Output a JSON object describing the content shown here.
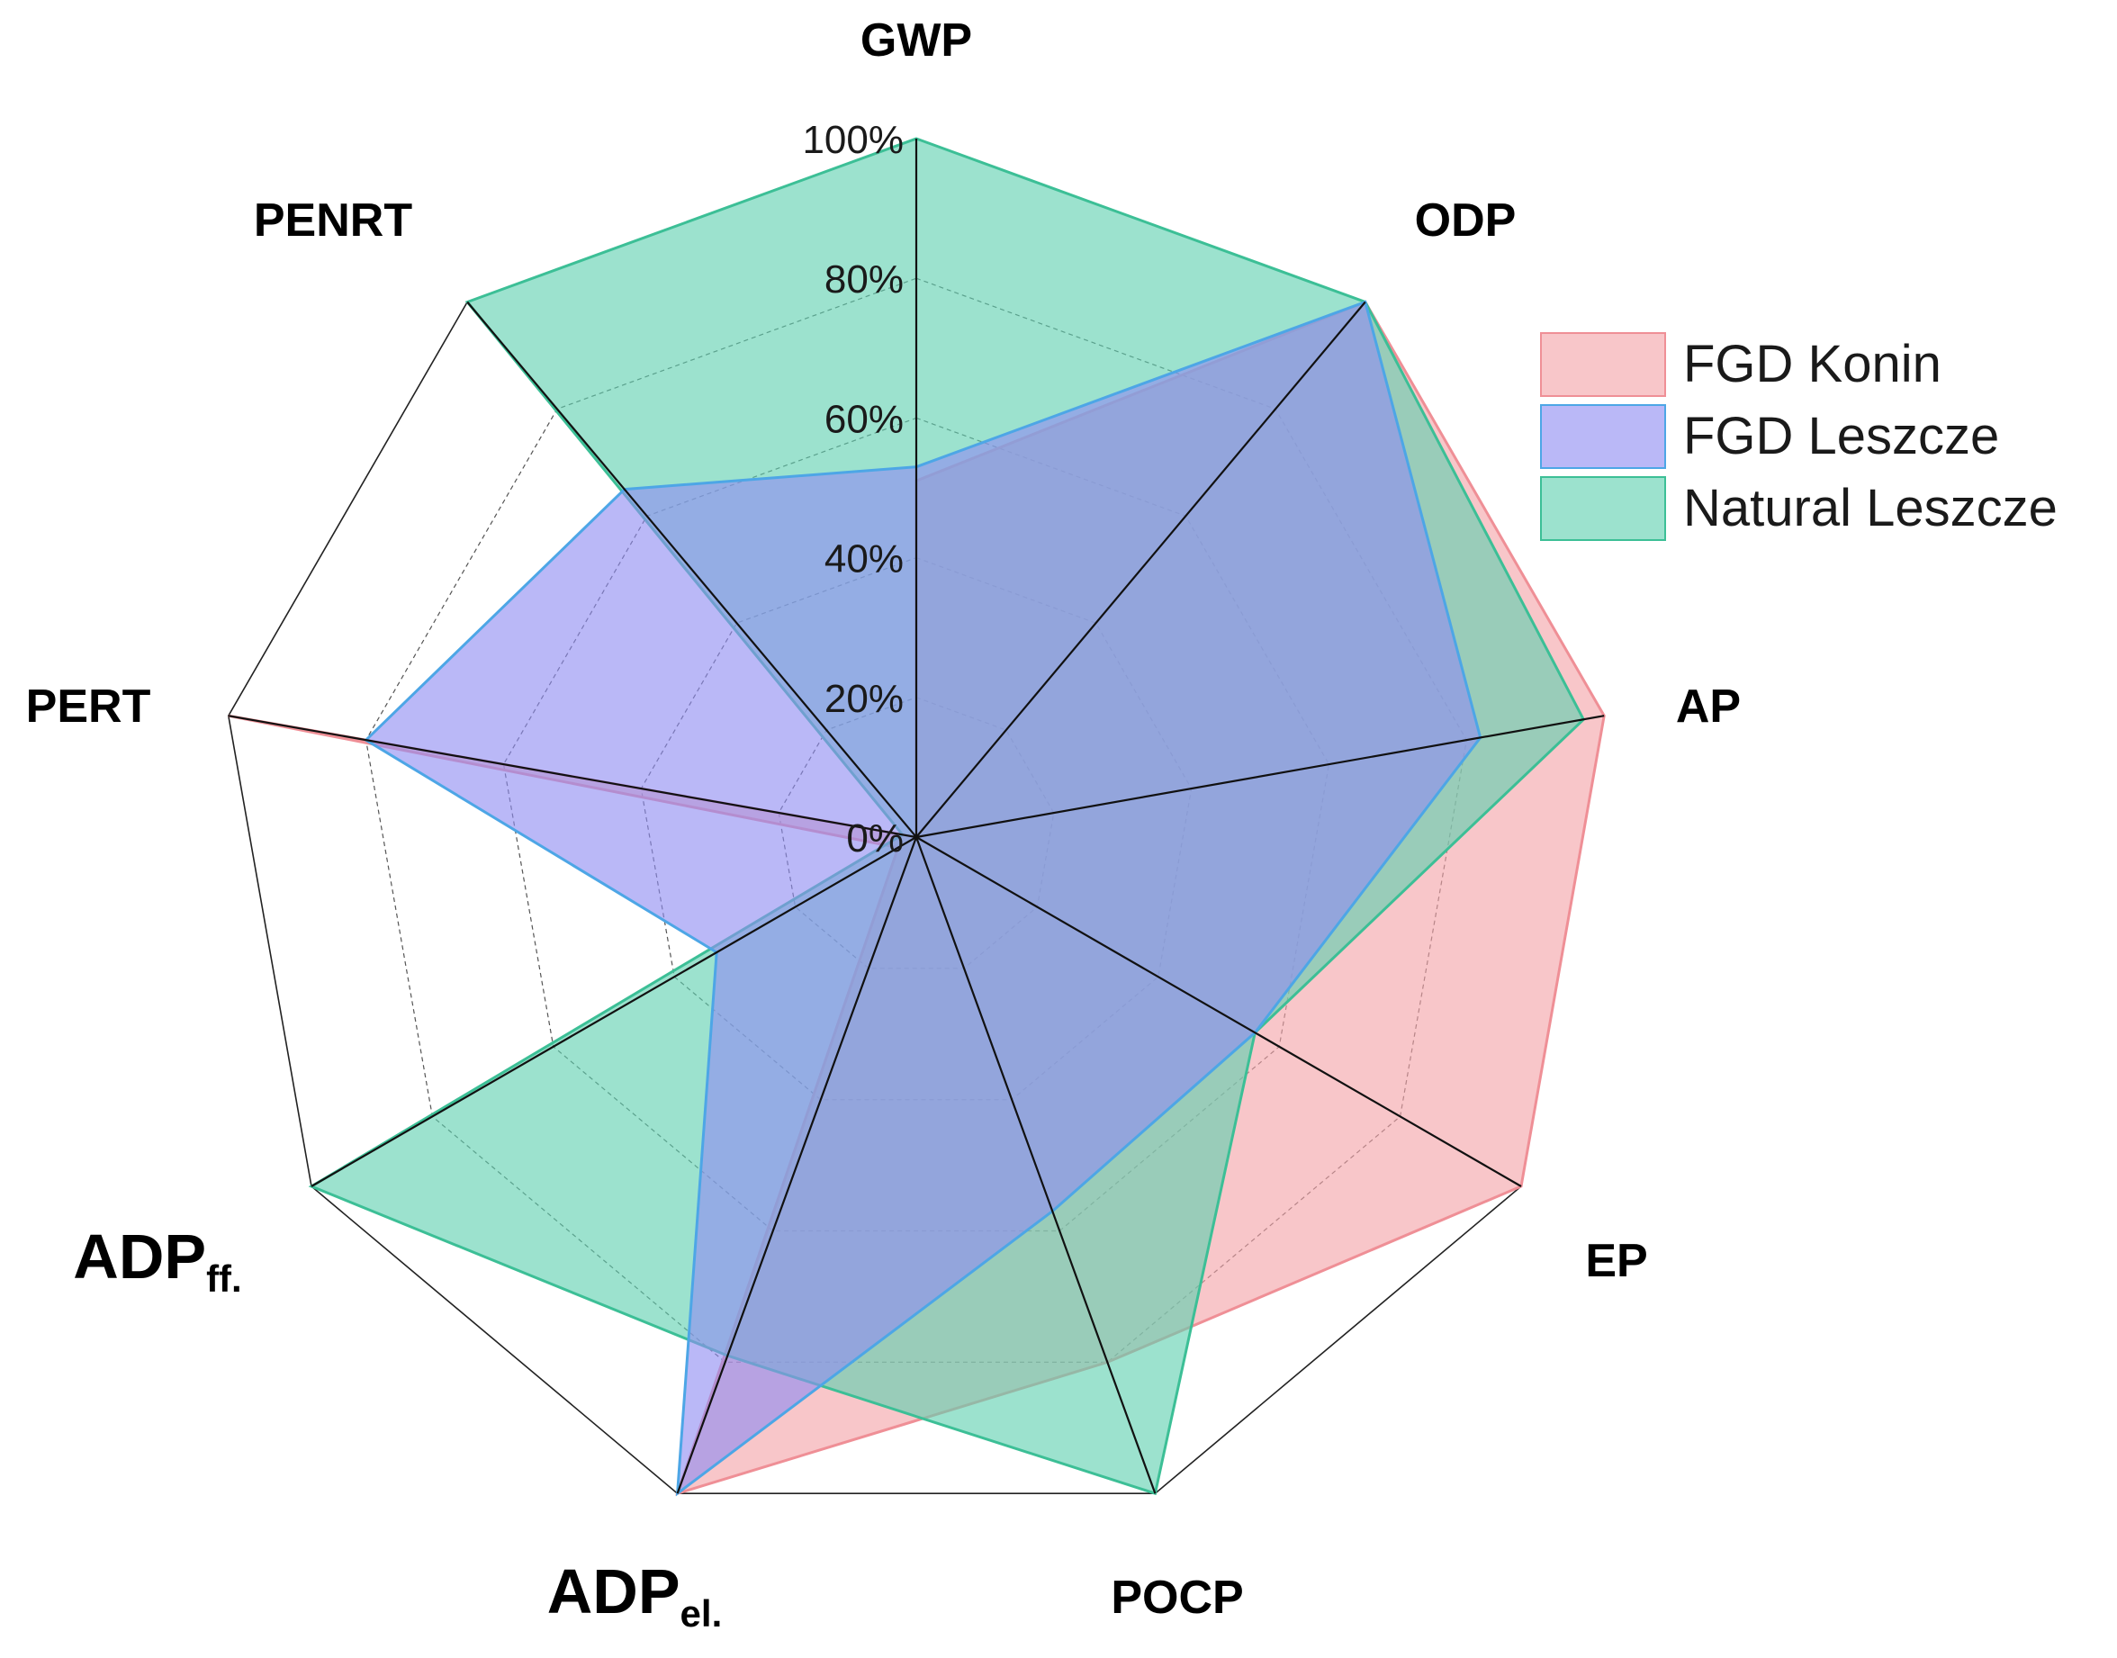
{
  "chart_data": {
    "type": "radar",
    "title": "",
    "axes": [
      {
        "name": "GWP",
        "sub": ""
      },
      {
        "name": "ODP",
        "sub": ""
      },
      {
        "name": "AP",
        "sub": ""
      },
      {
        "name": "EP",
        "sub": ""
      },
      {
        "name": "POCP",
        "sub": ""
      },
      {
        "name": "ADP",
        "sub": "el."
      },
      {
        "name": "ADP",
        "sub": "ff."
      },
      {
        "name": "PERT",
        "sub": ""
      },
      {
        "name": "PENRT",
        "sub": ""
      }
    ],
    "range": [
      0,
      100
    ],
    "ticks": [
      {
        "value": 0,
        "label": "0%"
      },
      {
        "value": 20,
        "label": "20%"
      },
      {
        "value": 40,
        "label": "40%"
      },
      {
        "value": 60,
        "label": "60%"
      },
      {
        "value": 80,
        "label": "80%"
      },
      {
        "value": 100,
        "label": "100%"
      }
    ],
    "legend_position": "right",
    "series": [
      {
        "name": "FGD Konin",
        "fill": "#f4a3a8",
        "stroke": "#ef8f96",
        "values": [
          51,
          100,
          100,
          100,
          80,
          100,
          3,
          100,
          0
        ]
      },
      {
        "name": "Natural Leszcze",
        "fill": "#5fd0b0",
        "stroke": "#3cbf96",
        "values": [
          100,
          100,
          97,
          56,
          100,
          79,
          100,
          2,
          100
        ]
      },
      {
        "name": "FGD Leszcze",
        "fill": "#8f8cf2",
        "stroke": "#4da6e6",
        "values": [
          53,
          100,
          82,
          56,
          57,
          100,
          33,
          80,
          65
        ]
      }
    ],
    "legend_order": [
      "FGD Konin",
      "FGD Leszcze",
      "Natural Leszcze"
    ]
  }
}
